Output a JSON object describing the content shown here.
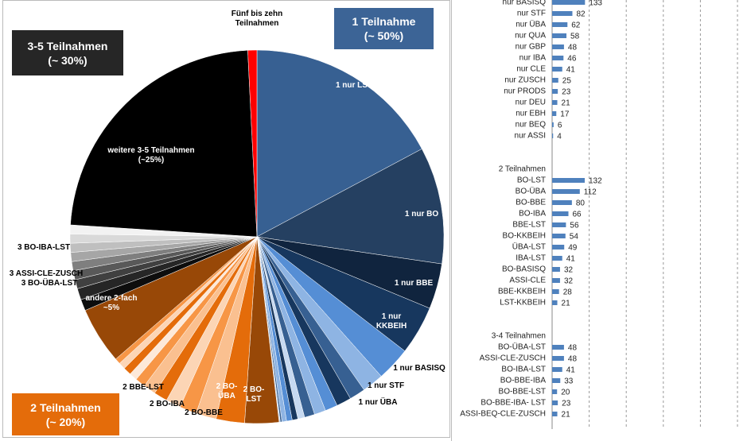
{
  "chart_data": [
    {
      "type": "pie",
      "labels": [
        "1 nur LST",
        "1 nur BO",
        "1 nur BBE",
        "1 nur\nKKBEIH",
        "1 nur BASISQ",
        "1 nur STF",
        "1 nur ÜBA",
        null,
        null,
        null,
        null,
        null,
        null,
        null,
        null,
        null,
        null,
        "2 BO-\nLST",
        "2 BO-\nÜBA",
        "2 BO-BBE",
        "2 BO-IBA",
        "2 BBE-LST",
        null,
        null,
        null,
        null,
        null,
        null,
        null,
        "andere 2-fach\n~5%",
        "3 BO-ÜBA-LST",
        "3 ASSI-CLE-ZUSCH",
        null,
        "3 BO-IBA-LST",
        null,
        null,
        null,
        null,
        null,
        "weitere 3-5 Teilnahmen\n(~25%)",
        "Fünf bis zehn\nTeilnahmen"
      ],
      "values": [
        17.5,
        10.3,
        4,
        4.3,
        3,
        1.9,
        1.4,
        1.3,
        1.1,
        1,
        0.9,
        0.6,
        0.5,
        0.5,
        0.4,
        0.15,
        0.1,
        3,
        2.5,
        1.8,
        1.5,
        1.3,
        1.2,
        1.1,
        0.9,
        0.7,
        0.7,
        0.6,
        0.5,
        5,
        1,
        1,
        0.8,
        0.8,
        0.8,
        0.8,
        0.8,
        0.8,
        0.8,
        23.6,
        0.8
      ],
      "colors": [
        "#376092",
        "#254061",
        "#10243e",
        "#17375e",
        "#558ed5",
        "#8eb4e3",
        "#376092",
        "#17375e",
        "#558ed5",
        "#8eb4e3",
        "#376092",
        "#c6d9f1",
        "#17375e",
        "#558ed5",
        "#8eb4e3",
        "#376092",
        "#c6d9f1",
        "#984807",
        "#e46c0a",
        "#fac090",
        "#f79646",
        "#fcd5b5",
        "#e46c0a",
        "#fac090",
        "#f79646",
        "#fde9d9",
        "#e46c0a",
        "#fcd5b5",
        "#f79646",
        "#984807",
        "#0d0d0d",
        "#262626",
        "#404040",
        "#595959",
        "#7f7f7f",
        "#a6a6a6",
        "#bfbfbf",
        "#d9d9d9",
        "#f2f2f2",
        "#000000",
        "#ff0000"
      ],
      "annotations": [
        {
          "text": "1 Teilnahme\n(~ 50%)",
          "color": "#3c6496"
        },
        {
          "text": "3-5 Teilnahmen\n(~ 30%)",
          "color": "#262626"
        },
        {
          "text": "2 Teilnahmen\n(~ 20%)",
          "color": "#e46c0a"
        }
      ]
    },
    {
      "type": "hbar",
      "categories": [
        "nur BASISQ",
        "nur STF",
        "nur ÜBA",
        "nur QUA",
        "nur GBP",
        "nur IBA",
        "nur CLE",
        "nur ZUSCH",
        "nur PRODS",
        "nur DEU",
        "nur EBH",
        "nur BEQ",
        "nur ASSI",
        null,
        null,
        "2 Teilnahmen",
        "BO-LST",
        "BO-ÜBA",
        "BO-BBE",
        "BO-IBA",
        "BBE-LST",
        "BO-KKBEIH",
        "ÜBA-LST",
        "IBA-LST",
        "BO-BASISQ",
        "ASSI-CLE",
        "BBE-KKBEIH",
        "LST-KKBEIH",
        null,
        null,
        "3-4 Teilnahmen",
        "BO-ÜBA-LST",
        "ASSI-CLE-ZUSCH",
        "BO-IBA-LST",
        "BO-BBE-IBA",
        "BO-BBE-LST",
        "BO-BBE-IBA- LST",
        "ASSI-BEQ-CLE-ZUSCH"
      ],
      "values": [
        133,
        82,
        62,
        58,
        48,
        46,
        41,
        25,
        23,
        21,
        17,
        6,
        4,
        null,
        null,
        null,
        132,
        112,
        80,
        66,
        56,
        54,
        49,
        41,
        32,
        32,
        28,
        21,
        null,
        null,
        null,
        48,
        48,
        41,
        33,
        20,
        23,
        21
      ],
      "color": "#4f81bd",
      "xlim": [
        0,
        750
      ],
      "xticks": [
        0,
        150,
        300,
        450,
        600,
        750
      ],
      "grid": true
    }
  ]
}
